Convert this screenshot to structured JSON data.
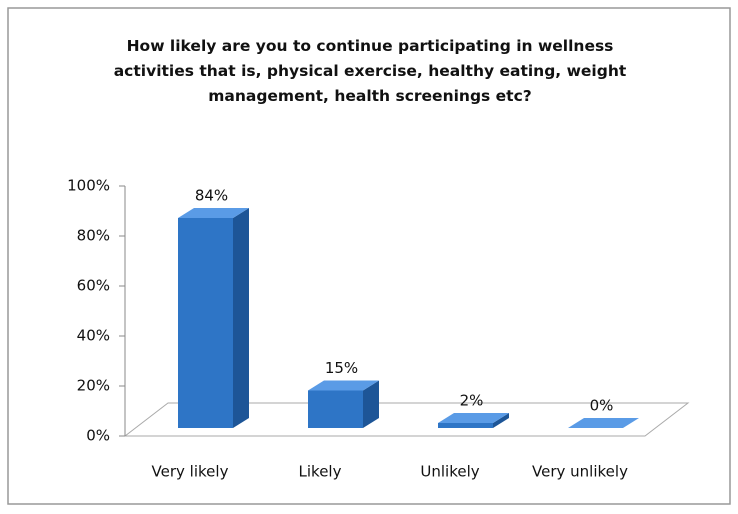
{
  "chart_data": {
    "type": "bar3d",
    "title": "How likely are you to continue participating in wellness activities that is, physical exercise, healthy eating, weight management, health screenings etc?",
    "categories": [
      "Very likely",
      "Likely",
      "Unlikely",
      "Very unlikely"
    ],
    "values": [
      84,
      15,
      2,
      0
    ],
    "value_labels": [
      "84%",
      "15%",
      "2%",
      "0%"
    ],
    "color": "#2e75c6",
    "ylim": [
      0,
      100
    ],
    "yticks": [
      {
        "value": 0,
        "label": "0%"
      },
      {
        "value": 20,
        "label": "20%"
      },
      {
        "value": 40,
        "label": "40%"
      },
      {
        "value": 60,
        "label": "60%"
      },
      {
        "value": 80,
        "label": "80%"
      },
      {
        "value": 100,
        "label": "100%"
      }
    ]
  }
}
